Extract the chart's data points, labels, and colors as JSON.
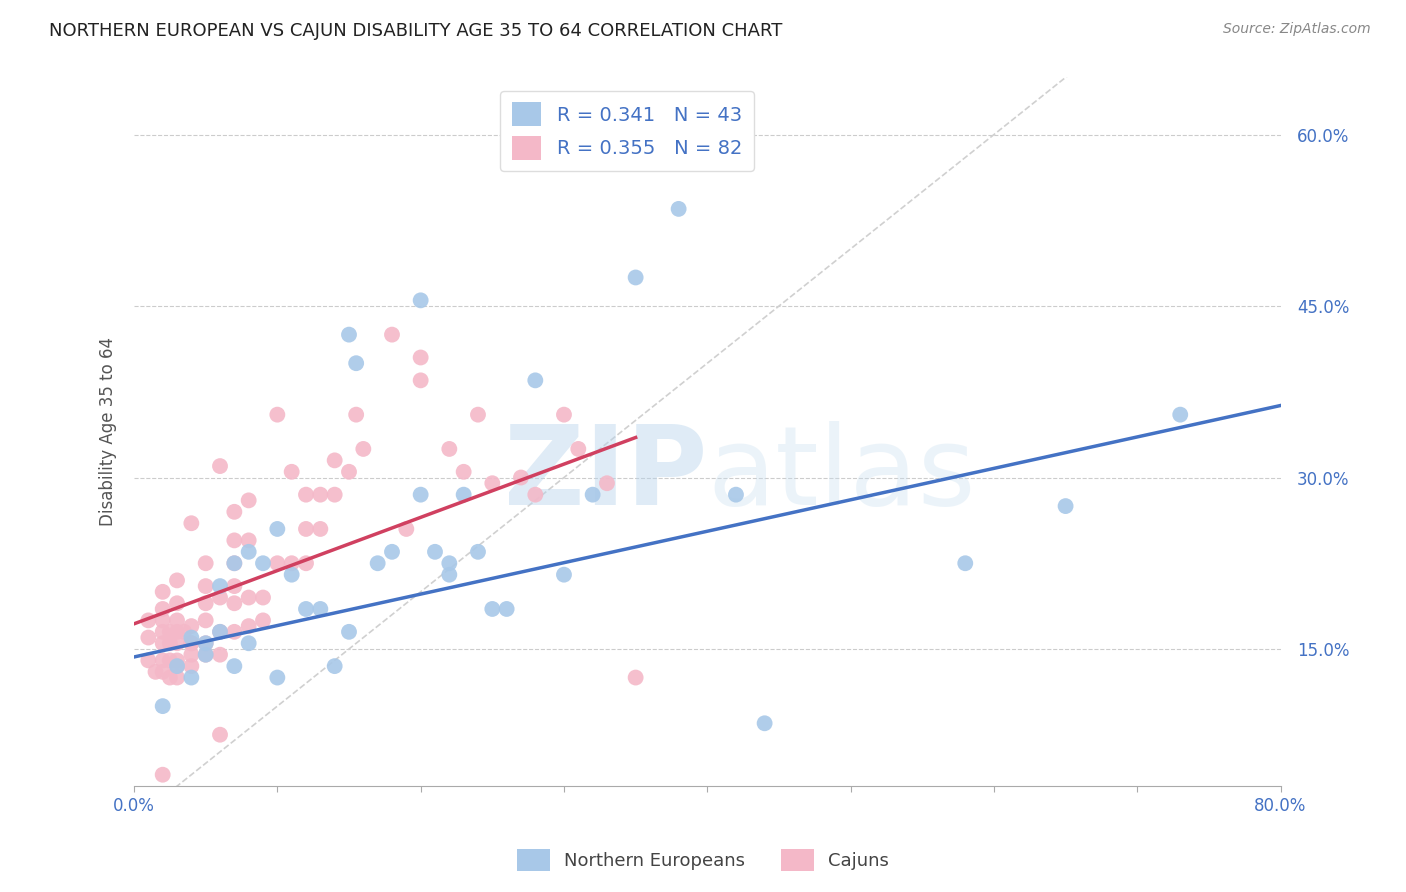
{
  "title": "NORTHERN EUROPEAN VS CAJUN DISABILITY AGE 35 TO 64 CORRELATION CHART",
  "source": "Source: ZipAtlas.com",
  "ylabel": "Disability Age 35 to 64",
  "xlim": [
    0.0,
    0.8
  ],
  "ylim": [
    0.03,
    0.65
  ],
  "xticks": [
    0.0,
    0.1,
    0.2,
    0.3,
    0.4,
    0.5,
    0.6,
    0.7,
    0.8
  ],
  "yticks": [
    0.15,
    0.3,
    0.45,
    0.6
  ],
  "grid_color": "#cccccc",
  "background_color": "#ffffff",
  "blue_color": "#a8c8e8",
  "pink_color": "#f4b8c8",
  "blue_line_color": "#4472c4",
  "pink_line_color": "#d04060",
  "ref_line_color": "#d0d0d0",
  "legend_northern": "Northern Europeans",
  "legend_cajuns": "Cajuns",
  "R_blue": 0.341,
  "N_blue": 43,
  "R_pink": 0.355,
  "N_pink": 82,
  "blue_line_x0": 0.0,
  "blue_line_y0": 0.143,
  "blue_line_x1": 0.8,
  "blue_line_y1": 0.363,
  "pink_line_x0": 0.0,
  "pink_line_y0": 0.172,
  "pink_line_x1": 0.35,
  "pink_line_y1": 0.335,
  "blue_x": [
    0.02,
    0.03,
    0.04,
    0.04,
    0.05,
    0.05,
    0.06,
    0.06,
    0.07,
    0.07,
    0.08,
    0.08,
    0.09,
    0.1,
    0.1,
    0.11,
    0.12,
    0.13,
    0.14,
    0.15,
    0.155,
    0.17,
    0.18,
    0.2,
    0.21,
    0.22,
    0.22,
    0.23,
    0.24,
    0.25,
    0.26,
    0.28,
    0.3,
    0.32,
    0.35,
    0.38,
    0.42,
    0.44,
    0.58,
    0.65,
    0.73,
    0.15,
    0.2
  ],
  "blue_y": [
    0.1,
    0.135,
    0.125,
    0.16,
    0.145,
    0.155,
    0.165,
    0.205,
    0.135,
    0.225,
    0.155,
    0.235,
    0.225,
    0.125,
    0.255,
    0.215,
    0.185,
    0.185,
    0.135,
    0.165,
    0.4,
    0.225,
    0.235,
    0.285,
    0.235,
    0.215,
    0.225,
    0.285,
    0.235,
    0.185,
    0.185,
    0.385,
    0.215,
    0.285,
    0.475,
    0.535,
    0.285,
    0.085,
    0.225,
    0.275,
    0.355,
    0.425,
    0.455
  ],
  "pink_x": [
    0.01,
    0.01,
    0.01,
    0.015,
    0.02,
    0.02,
    0.02,
    0.02,
    0.02,
    0.02,
    0.02,
    0.025,
    0.025,
    0.025,
    0.025,
    0.03,
    0.03,
    0.03,
    0.03,
    0.03,
    0.03,
    0.03,
    0.03,
    0.035,
    0.04,
    0.04,
    0.04,
    0.04,
    0.04,
    0.04,
    0.05,
    0.05,
    0.05,
    0.05,
    0.05,
    0.05,
    0.06,
    0.06,
    0.06,
    0.06,
    0.07,
    0.07,
    0.07,
    0.07,
    0.07,
    0.07,
    0.08,
    0.08,
    0.08,
    0.08,
    0.09,
    0.09,
    0.1,
    0.1,
    0.11,
    0.11,
    0.12,
    0.12,
    0.12,
    0.13,
    0.13,
    0.14,
    0.14,
    0.15,
    0.155,
    0.16,
    0.18,
    0.19,
    0.2,
    0.2,
    0.22,
    0.23,
    0.24,
    0.25,
    0.27,
    0.28,
    0.3,
    0.31,
    0.33,
    0.35,
    0.02,
    0.06
  ],
  "pink_y": [
    0.14,
    0.16,
    0.175,
    0.13,
    0.13,
    0.14,
    0.155,
    0.165,
    0.175,
    0.185,
    0.2,
    0.125,
    0.14,
    0.155,
    0.165,
    0.125,
    0.135,
    0.14,
    0.155,
    0.165,
    0.175,
    0.19,
    0.21,
    0.165,
    0.135,
    0.155,
    0.17,
    0.26,
    0.145,
    0.155,
    0.145,
    0.155,
    0.175,
    0.19,
    0.205,
    0.225,
    0.145,
    0.165,
    0.195,
    0.31,
    0.165,
    0.19,
    0.205,
    0.225,
    0.245,
    0.27,
    0.17,
    0.195,
    0.245,
    0.28,
    0.175,
    0.195,
    0.225,
    0.355,
    0.225,
    0.305,
    0.225,
    0.255,
    0.285,
    0.255,
    0.285,
    0.285,
    0.315,
    0.305,
    0.355,
    0.325,
    0.425,
    0.255,
    0.385,
    0.405,
    0.325,
    0.305,
    0.355,
    0.295,
    0.3,
    0.285,
    0.355,
    0.325,
    0.295,
    0.125,
    0.04,
    0.075
  ]
}
